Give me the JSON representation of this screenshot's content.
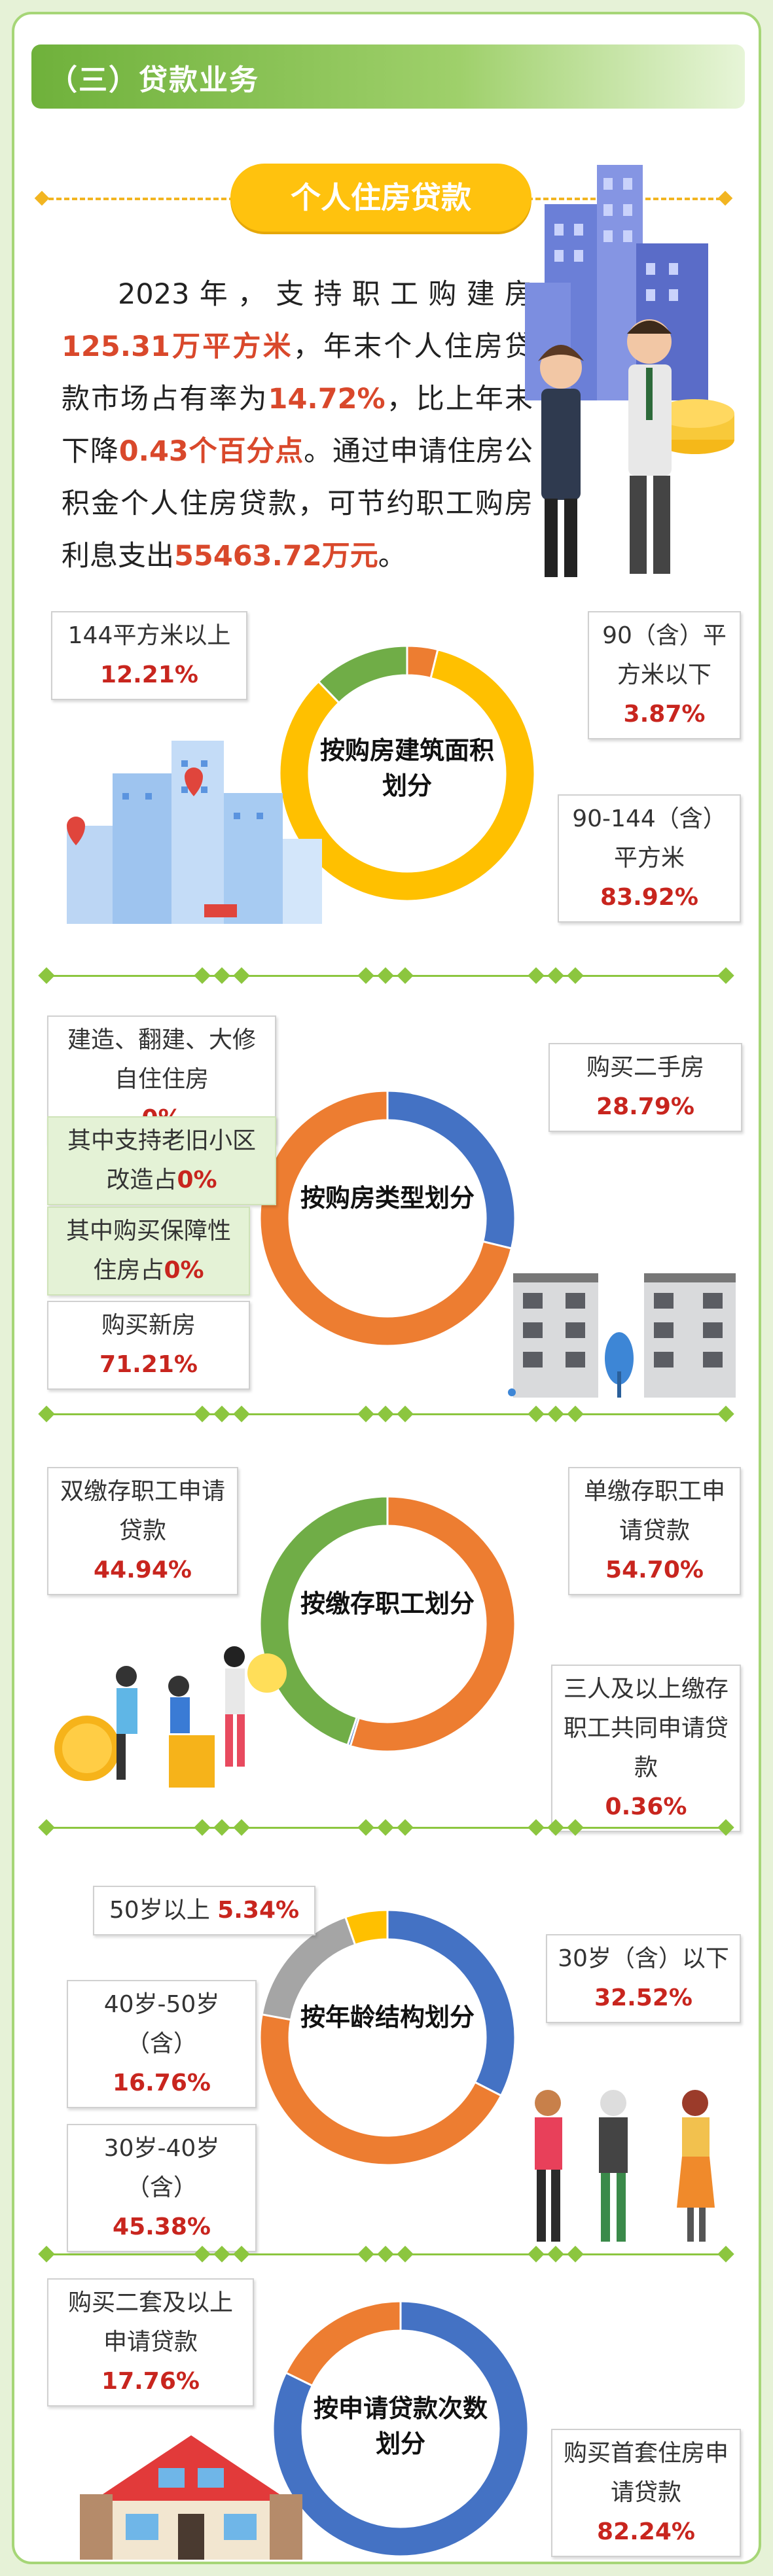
{
  "header": {
    "title": "（三）贷款业务"
  },
  "subtitle": "个人住房贷款",
  "intro": {
    "p1": "2023年，支持职工购建房",
    "v_area": "125.31万平方米",
    "p2": "，年末个人住房贷款市场占有率为",
    "v_share": "14.72%",
    "p3": "，比上年末下降",
    "v_drop": "0.43个百分点",
    "p4": "。通过申请住房公积金个人住房贷款，可节约职工购房利息支出",
    "v_saving": "55463.72万元",
    "p5": "。"
  },
  "colors": {
    "blue": "#4472c4",
    "orange": "#ed7d31",
    "yellow": "#ffc000",
    "green": "#70ad47",
    "grey": "#a5a5a5",
    "accent_green": "#8cc63f"
  },
  "chart_data": [
    {
      "type": "pie",
      "center": "按购房建筑面积划分",
      "categories": [
        "90（含）平方米以下",
        "90-144（含）平方米",
        "144平方米以上"
      ],
      "values": [
        3.87,
        83.92,
        12.21
      ],
      "colors": [
        "#ed7d31",
        "#ffc000",
        "#70ad47"
      ],
      "labels": [
        {
          "text": "90（含）平方米以下",
          "pct": "3.87%"
        },
        {
          "text": "90-144（含）平方米",
          "pct": "83.92%"
        },
        {
          "text": "144平方米以上",
          "pct": "12.21%"
        }
      ]
    },
    {
      "type": "pie",
      "center": "按购房类型划分",
      "categories": [
        "购买二手房",
        "购买新房",
        "建造、翻建、大修自住住房"
      ],
      "values": [
        28.79,
        71.21,
        0
      ],
      "colors": [
        "#4472c4",
        "#ed7d31",
        "#a5a5a5"
      ],
      "labels": [
        {
          "text": "购买二手房",
          "pct": "28.79%"
        },
        {
          "text": "购买新房",
          "pct": "71.21%"
        },
        {
          "text": "建造、翻建、大修自住住房",
          "pct": "0%"
        },
        {
          "text": "其中支持老旧小区改造占",
          "pct": "0%"
        },
        {
          "text": "其中购买保障性住房占",
          "pct": "0%"
        }
      ]
    },
    {
      "type": "pie",
      "center": "按缴存职工划分",
      "categories": [
        "单缴存职工申请贷款",
        "三人及以上缴存职工共同申请贷款",
        "双缴存职工申请贷款"
      ],
      "values": [
        54.7,
        0.36,
        44.94
      ],
      "colors": [
        "#ed7d31",
        "#4472c4",
        "#70ad47"
      ],
      "labels": [
        {
          "text": "单缴存职工申请贷款",
          "pct": "54.70%"
        },
        {
          "text": "三人及以上缴存职工共同申请贷款",
          "pct": "0.36%"
        },
        {
          "text": "双缴存职工申请贷款",
          "pct": "44.94%"
        }
      ]
    },
    {
      "type": "pie",
      "center": "按年龄结构划分",
      "categories": [
        "30岁（含）以下",
        "30岁-40岁（含）",
        "40岁-50岁（含）",
        "50岁以上"
      ],
      "values": [
        32.52,
        45.38,
        16.76,
        5.34
      ],
      "colors": [
        "#4472c4",
        "#ed7d31",
        "#a5a5a5",
        "#ffc000"
      ],
      "labels": [
        {
          "text": "30岁（含）以下",
          "pct": "32.52%"
        },
        {
          "text": "30岁-40岁（含）",
          "pct": "45.38%"
        },
        {
          "text": "40岁-50岁（含）",
          "pct": "16.76%"
        },
        {
          "text": "50岁以上",
          "pct": "5.34%"
        }
      ]
    },
    {
      "type": "pie",
      "center": "按申请贷款次数划分",
      "categories": [
        "购买首套住房申请贷款",
        "购买二套及以上申请贷款"
      ],
      "values": [
        82.24,
        17.76
      ],
      "colors": [
        "#4472c4",
        "#ed7d31"
      ],
      "labels": [
        {
          "text": "购买首套住房申请贷款",
          "pct": "82.24%"
        },
        {
          "text": "购买二套及以上申请贷款",
          "pct": "17.76%"
        }
      ]
    }
  ]
}
